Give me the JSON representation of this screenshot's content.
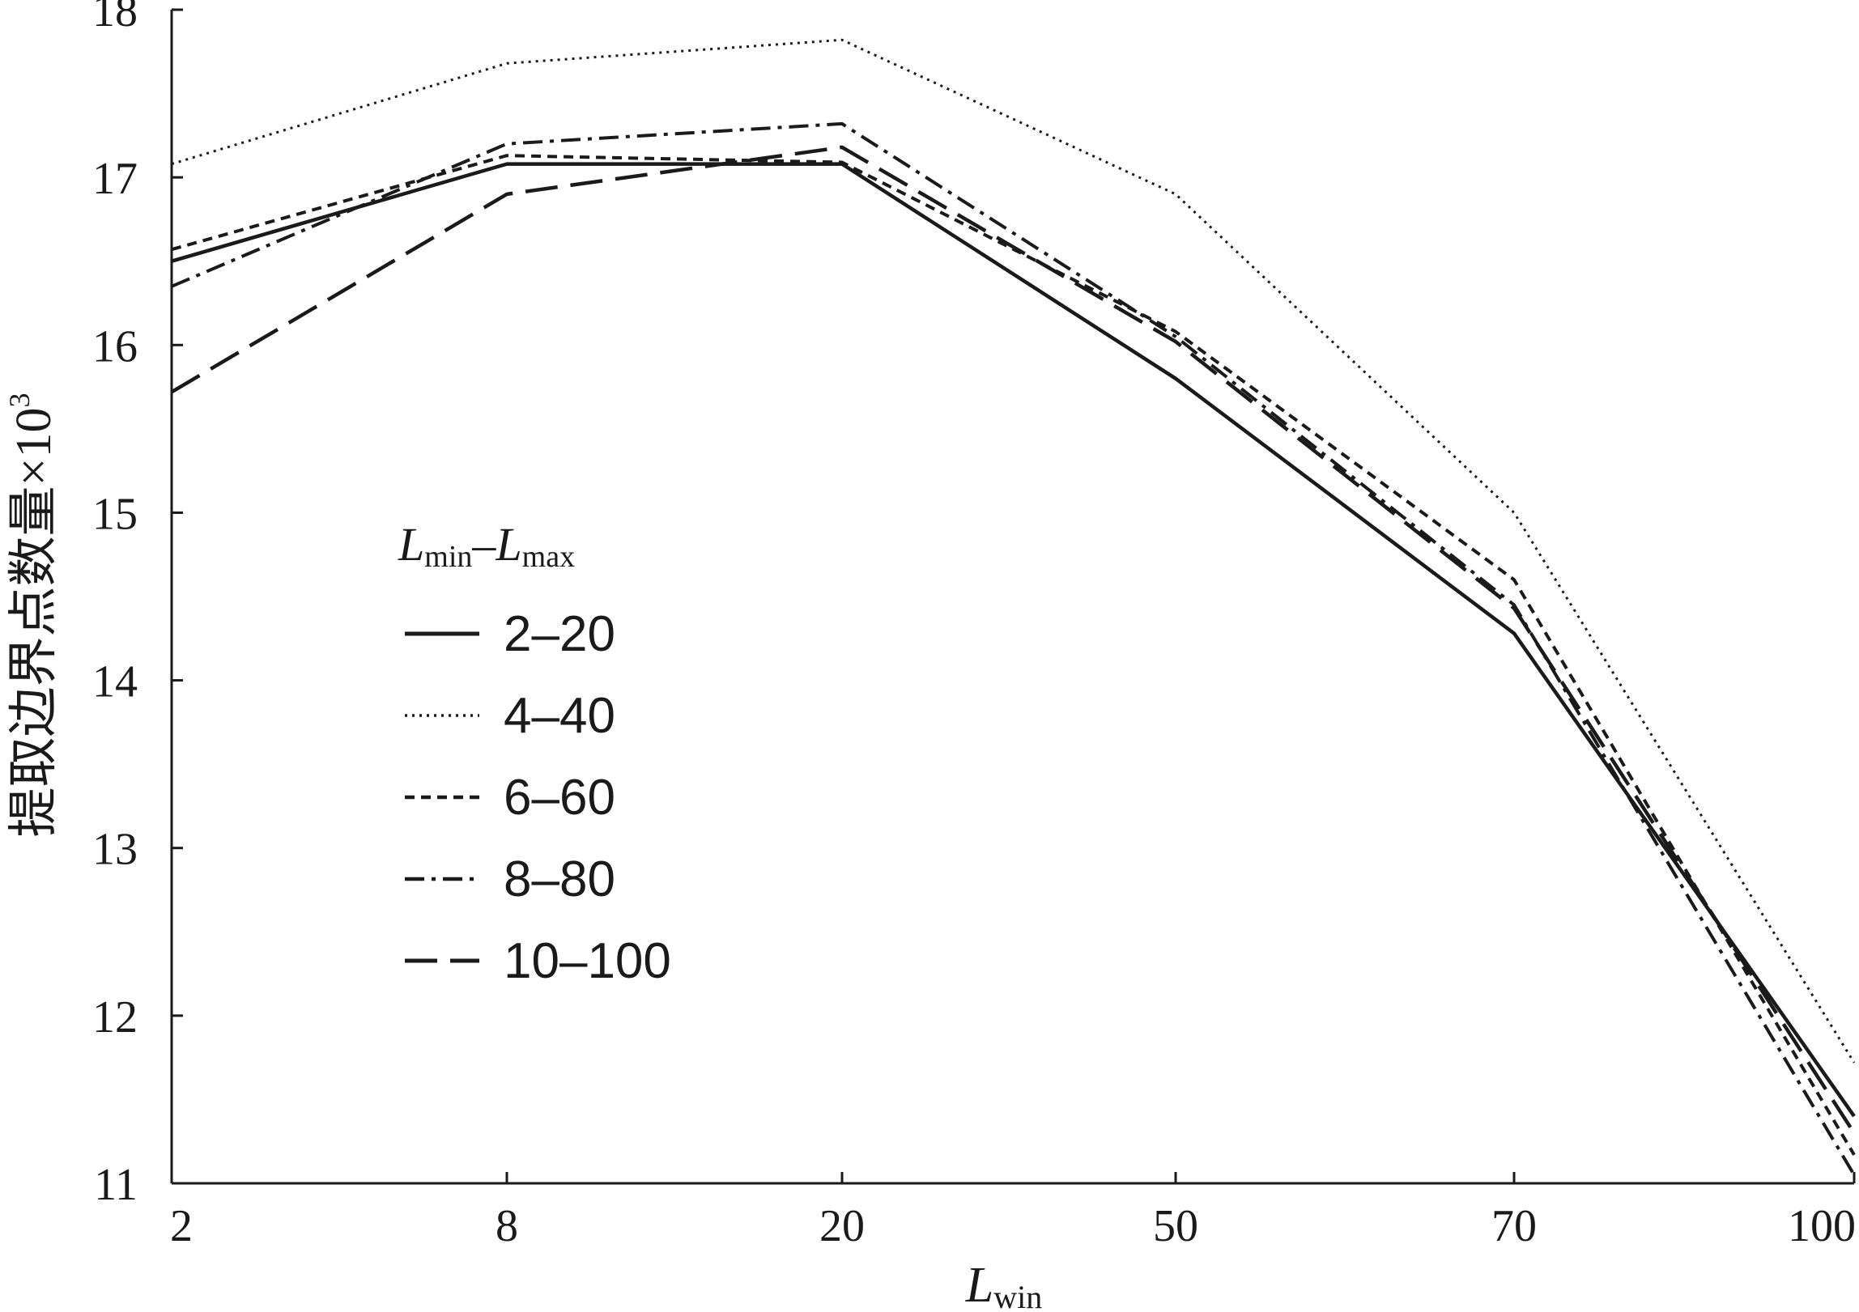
{
  "chart_data": {
    "type": "line",
    "x": [
      "2",
      "8",
      "20",
      "50",
      "70",
      "100"
    ],
    "xlabel": {
      "main": "L",
      "sub": "win"
    },
    "ylabel": {
      "text": "提取边界点数量×10",
      "sup": "3"
    },
    "ylim": [
      11,
      18
    ],
    "yticks": [
      "11",
      "12",
      "13",
      "14",
      "15",
      "16",
      "17",
      "18"
    ],
    "grid": false,
    "legend": {
      "placement": "center-left",
      "title": {
        "a": "L",
        "a_sub": "min",
        "dash": "–",
        "b": "L",
        "b_sub": "max"
      }
    },
    "series": [
      {
        "name": "2–20",
        "style": "solid",
        "values": [
          16.5,
          17.08,
          17.08,
          15.8,
          14.28,
          11.4
        ]
      },
      {
        "name": "4–40",
        "style": "dotted",
        "values": [
          17.08,
          17.68,
          17.82,
          16.9,
          15.0,
          11.72
        ]
      },
      {
        "name": "6–60",
        "style": "dashed",
        "values": [
          16.57,
          17.13,
          17.09,
          16.08,
          14.6,
          11.17
        ]
      },
      {
        "name": "8–80",
        "style": "dashdot",
        "values": [
          16.35,
          17.2,
          17.32,
          16.05,
          14.45,
          11.05
        ]
      },
      {
        "name": "10–100",
        "style": "longdash",
        "values": [
          15.72,
          16.9,
          17.18,
          16.02,
          14.43,
          11.3
        ]
      }
    ]
  }
}
